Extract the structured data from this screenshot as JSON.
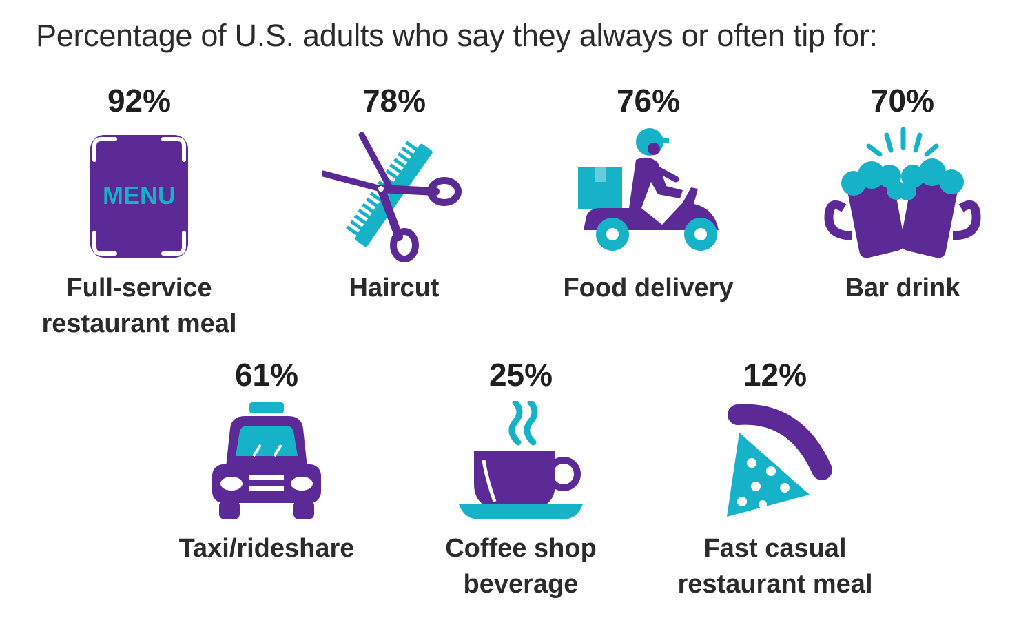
{
  "title": "Percentage of U.S. adults who say they always or often tip for:",
  "colors": {
    "purple": "#5b2a96",
    "cyan": "#16b2c8",
    "text": "#2b2b2b"
  },
  "menu_text": "MENU",
  "chart_data": {
    "type": "table",
    "categories": [
      "Full-service restaurant meal",
      "Haircut",
      "Food delivery",
      "Bar drink",
      "Taxi/rideshare",
      "Coffee shop beverage",
      "Fast casual restaurant meal"
    ],
    "values": [
      92,
      78,
      76,
      70,
      61,
      25,
      12
    ],
    "unit": "%",
    "items": [
      {
        "pct": "92%",
        "label": "Full-service\nrestaurant meal",
        "icon": "menu-icon"
      },
      {
        "pct": "78%",
        "label": "Haircut",
        "icon": "scissors-comb-icon"
      },
      {
        "pct": "76%",
        "label": "Food delivery",
        "icon": "delivery-scooter-icon"
      },
      {
        "pct": "70%",
        "label": "Bar drink",
        "icon": "beer-mugs-icon"
      },
      {
        "pct": "61%",
        "label": "Taxi/rideshare",
        "icon": "taxi-icon"
      },
      {
        "pct": "25%",
        "label": "Coffee shop\nbeverage",
        "icon": "coffee-cup-icon"
      },
      {
        "pct": "12%",
        "label": "Fast casual\nrestaurant meal",
        "icon": "pizza-slice-icon"
      }
    ]
  }
}
